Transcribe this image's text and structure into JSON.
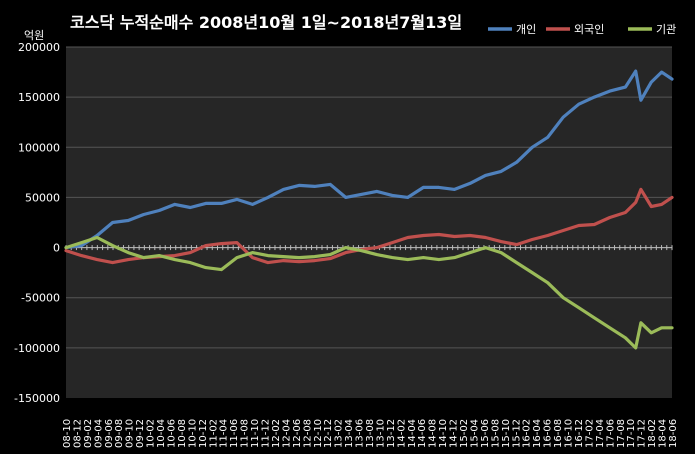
{
  "chart_data": {
    "type": "line",
    "title": "코스닥 누적순매수 2008년10월 1일~2018년7월13일",
    "y_unit_label": "억원",
    "ylim": [
      -150000,
      200000
    ],
    "y_ticks": [
      200000,
      150000,
      100000,
      50000,
      0,
      -50000,
      -100000,
      -150000
    ],
    "x_tick_labels": [
      "08-10",
      "08-12",
      "09-02",
      "09-04",
      "09-06",
      "09-08",
      "09-10",
      "09-12",
      "10-02",
      "10-04",
      "10-06",
      "10-08",
      "10-10",
      "10-12",
      "11-02",
      "11-04",
      "11-06",
      "11-08",
      "11-10",
      "11-12",
      "12-02",
      "12-04",
      "12-06",
      "12-08",
      "12-10",
      "12-12",
      "13-02",
      "13-04",
      "13-06",
      "13-08",
      "13-10",
      "13-12",
      "14-02",
      "14-04",
      "14-06",
      "14-08",
      "14-10",
      "14-12",
      "15-02",
      "15-04",
      "15-06",
      "15-08",
      "15-10",
      "15-12",
      "16-02",
      "16-04",
      "16-06",
      "16-08",
      "16-10",
      "16-12",
      "17-02",
      "17-04",
      "17-06",
      "17-08",
      "17-10",
      "17-12",
      "18-02",
      "18-04",
      "18-06"
    ],
    "grid": "horizontal",
    "legend_position": "top-right",
    "x": [
      "2008-10",
      "2009-01",
      "2009-04",
      "2009-07",
      "2009-10",
      "2010-01",
      "2010-04",
      "2010-07",
      "2010-10",
      "2011-01",
      "2011-04",
      "2011-07",
      "2011-10",
      "2012-01",
      "2012-04",
      "2012-07",
      "2012-10",
      "2013-01",
      "2013-04",
      "2013-07",
      "2013-10",
      "2014-01",
      "2014-04",
      "2014-07",
      "2014-10",
      "2015-01",
      "2015-04",
      "2015-07",
      "2015-10",
      "2016-01",
      "2016-04",
      "2016-07",
      "2016-10",
      "2017-01",
      "2017-04",
      "2017-07",
      "2017-10",
      "2017-12",
      "2018-01",
      "2018-03",
      "2018-05",
      "2018-07"
    ],
    "series": [
      {
        "name": "개인",
        "color": "#4f81bd",
        "values": [
          0,
          2000,
          12000,
          25000,
          27000,
          33000,
          37000,
          43000,
          40000,
          44000,
          44000,
          48000,
          43000,
          50000,
          58000,
          62000,
          61000,
          63000,
          50000,
          53000,
          56000,
          52000,
          50000,
          60000,
          60000,
          58000,
          64000,
          72000,
          76000,
          85000,
          100000,
          110000,
          130000,
          143000,
          150000,
          156000,
          160000,
          176000,
          147000,
          165000,
          175000,
          168000
        ]
      },
      {
        "name": "외국인",
        "color": "#c0504d",
        "values": [
          -3000,
          -8000,
          -12000,
          -15000,
          -12000,
          -10000,
          -9000,
          -8000,
          -5000,
          2000,
          4000,
          5000,
          -10000,
          -15000,
          -13000,
          -14000,
          -13000,
          -11000,
          -5000,
          -2000,
          0,
          5000,
          10000,
          12000,
          13000,
          11000,
          12000,
          10000,
          6000,
          3000,
          8000,
          12000,
          17000,
          22000,
          23000,
          30000,
          35000,
          45000,
          58000,
          41000,
          43000,
          50000
        ]
      },
      {
        "name": "기관",
        "color": "#9bbb59",
        "values": [
          0,
          5000,
          10000,
          2000,
          -5000,
          -10000,
          -8000,
          -12000,
          -15000,
          -20000,
          -22000,
          -10000,
          -5000,
          -8000,
          -9000,
          -10000,
          -9000,
          -7000,
          0,
          -3000,
          -7000,
          -10000,
          -12000,
          -10000,
          -12000,
          -10000,
          -5000,
          0,
          -5000,
          -15000,
          -25000,
          -35000,
          -50000,
          -60000,
          -70000,
          -80000,
          -90000,
          -100000,
          -75000,
          -85000,
          -80000,
          -80000
        ]
      }
    ]
  }
}
